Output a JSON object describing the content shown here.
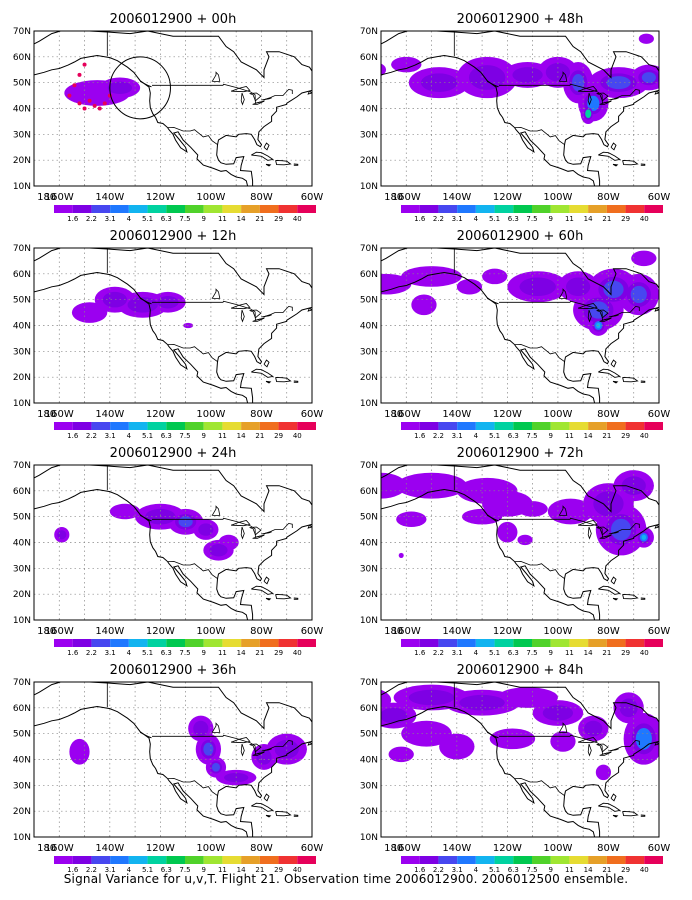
{
  "footer": "Signal Variance for u,v,T. Flight 21. Observation time 2006012900. 2006012500 ensemble.",
  "lat_ticks": [
    "70N",
    "60N",
    "50N",
    "40N",
    "30N",
    "20N",
    "10N"
  ],
  "lon_ticks": [
    "180",
    "160W",
    "140W",
    "120W",
    "100W",
    "80W",
    "60W"
  ],
  "colorbar": {
    "labels": [
      "1.6",
      "2.2",
      "3.1",
      "4",
      "5.1",
      "6.3",
      "7.5",
      "9",
      "11",
      "14",
      "21",
      "29",
      "40"
    ],
    "colors": [
      "#9b00f0",
      "#7e00e4",
      "#4747f0",
      "#1f78ff",
      "#12b4f0",
      "#00d2a0",
      "#00c850",
      "#50d22a",
      "#a0e632",
      "#e6dc32",
      "#e6a028",
      "#f06e1e",
      "#f03232",
      "#e6005a"
    ]
  },
  "chart_data": [
    {
      "title": "2006012900 + 00h",
      "type": "map",
      "blobs": [
        [
          145,
          46,
          13,
          5,
          0.1
        ],
        [
          136,
          48,
          8,
          4,
          0.25
        ]
      ],
      "dots": [
        [
          150,
          57
        ],
        [
          152,
          53
        ],
        [
          154,
          49
        ],
        [
          156,
          45
        ],
        [
          152,
          42
        ],
        [
          146,
          41
        ],
        [
          142,
          42
        ],
        [
          140,
          45
        ],
        [
          148,
          43
        ],
        [
          150,
          40
        ],
        [
          144,
          40
        ]
      ],
      "circle": [
        128,
        48,
        12
      ]
    },
    {
      "title": "2006012900 + 48h",
      "type": "map",
      "blobs": [
        [
          173,
          55,
          5,
          3,
          0.05
        ],
        [
          160,
          57,
          6,
          3,
          0.1
        ],
        [
          147,
          50,
          12,
          6,
          0.15
        ],
        [
          128,
          52,
          12,
          8,
          0.2
        ],
        [
          112,
          53,
          10,
          5,
          0.2
        ],
        [
          100,
          54,
          8,
          6,
          0.25
        ],
        [
          92,
          50,
          6,
          8,
          0.35
        ],
        [
          86,
          42,
          6,
          7,
          0.5
        ],
        [
          88,
          38,
          3,
          4,
          0.7
        ],
        [
          76,
          50,
          12,
          6,
          0.3
        ],
        [
          64,
          52,
          7,
          5,
          0.3
        ],
        [
          65,
          67,
          3,
          2,
          0.05
        ]
      ]
    },
    {
      "title": "2006012900 + 12h",
      "type": "map",
      "blobs": [
        [
          148,
          45,
          7,
          4,
          0.1
        ],
        [
          138,
          50,
          8,
          5,
          0.2
        ],
        [
          127,
          48,
          10,
          5,
          0.2
        ],
        [
          117,
          49,
          7,
          4,
          0.15
        ],
        [
          109,
          40,
          2,
          1,
          0.05
        ]
      ]
    },
    {
      "title": "2006012900 + 60h",
      "type": "map",
      "blobs": [
        [
          168,
          56,
          10,
          4,
          0.1
        ],
        [
          150,
          59,
          12,
          4,
          0.1
        ],
        [
          135,
          55,
          5,
          3,
          0.1
        ],
        [
          153,
          48,
          5,
          4,
          0.1
        ],
        [
          125,
          59,
          5,
          3,
          0.1
        ],
        [
          108,
          55,
          12,
          6,
          0.2
        ],
        [
          92,
          55,
          8,
          6,
          0.2
        ],
        [
          84,
          46,
          10,
          8,
          0.4
        ],
        [
          84,
          40,
          4,
          4,
          0.55
        ],
        [
          78,
          54,
          10,
          8,
          0.3
        ],
        [
          68,
          52,
          8,
          8,
          0.35
        ],
        [
          66,
          66,
          5,
          3,
          0.1
        ]
      ]
    },
    {
      "title": "2006012900 + 24h",
      "type": "map",
      "blobs": [
        [
          159,
          43,
          3,
          3,
          0.15
        ],
        [
          134,
          52,
          6,
          3,
          0.1
        ],
        [
          120,
          50,
          10,
          5,
          0.15
        ],
        [
          110,
          48,
          7,
          5,
          0.3
        ],
        [
          102,
          45,
          5,
          4,
          0.2
        ],
        [
          97,
          37,
          6,
          4,
          0.15
        ],
        [
          93,
          40,
          4,
          3,
          0.1
        ]
      ]
    },
    {
      "title": "2006012900 + 72h",
      "type": "map",
      "blobs": [
        [
          170,
          62,
          10,
          5,
          0.1
        ],
        [
          150,
          62,
          14,
          5,
          0.1
        ],
        [
          128,
          60,
          12,
          5,
          0.1
        ],
        [
          120,
          55,
          10,
          5,
          0.1
        ],
        [
          158,
          49,
          6,
          3,
          0.1
        ],
        [
          130,
          50,
          8,
          3,
          0.1
        ],
        [
          120,
          44,
          4,
          4,
          0.1
        ],
        [
          110,
          53,
          6,
          3,
          0.05
        ],
        [
          95,
          52,
          9,
          5,
          0.1
        ],
        [
          80,
          55,
          10,
          8,
          0.15
        ],
        [
          70,
          62,
          8,
          6,
          0.2
        ],
        [
          75,
          45,
          10,
          10,
          0.4
        ],
        [
          66,
          42,
          4,
          4,
          0.55
        ],
        [
          113,
          41,
          3,
          2,
          0.1
        ],
        [
          162,
          35,
          1,
          1,
          0.05
        ]
      ]
    },
    {
      "title": "2006012900 + 36h",
      "type": "map",
      "blobs": [
        [
          173,
          55,
          2,
          2,
          0.05
        ],
        [
          172,
          50,
          2,
          2,
          0.05
        ],
        [
          152,
          43,
          4,
          5,
          0.1
        ],
        [
          104,
          52,
          5,
          5,
          0.2
        ],
        [
          101,
          44,
          5,
          6,
          0.4
        ],
        [
          98,
          37,
          4,
          4,
          0.3
        ],
        [
          90,
          33,
          8,
          3,
          0.15
        ],
        [
          79,
          41,
          5,
          5,
          0.2
        ],
        [
          70,
          44,
          8,
          6,
          0.25
        ]
      ]
    },
    {
      "title": "2006012900 + 84h",
      "type": "map",
      "blobs": [
        [
          176,
          63,
          10,
          5,
          0.15
        ],
        [
          165,
          57,
          9,
          5,
          0.15
        ],
        [
          150,
          64,
          15,
          5,
          0.15
        ],
        [
          130,
          62,
          15,
          5,
          0.15
        ],
        [
          112,
          64,
          12,
          4,
          0.1
        ],
        [
          100,
          58,
          10,
          5,
          0.15
        ],
        [
          162,
          42,
          5,
          3,
          0.1
        ],
        [
          152,
          50,
          10,
          5,
          0.1
        ],
        [
          140,
          45,
          7,
          5,
          0.1
        ],
        [
          118,
          48,
          9,
          4,
          0.1
        ],
        [
          98,
          47,
          5,
          4,
          0.1
        ],
        [
          86,
          52,
          6,
          5,
          0.15
        ],
        [
          66,
          48,
          8,
          10,
          0.45
        ],
        [
          72,
          60,
          6,
          6,
          0.25
        ],
        [
          178,
          43,
          2,
          2,
          0.1
        ],
        [
          82,
          35,
          3,
          3,
          0.1
        ]
      ]
    }
  ]
}
